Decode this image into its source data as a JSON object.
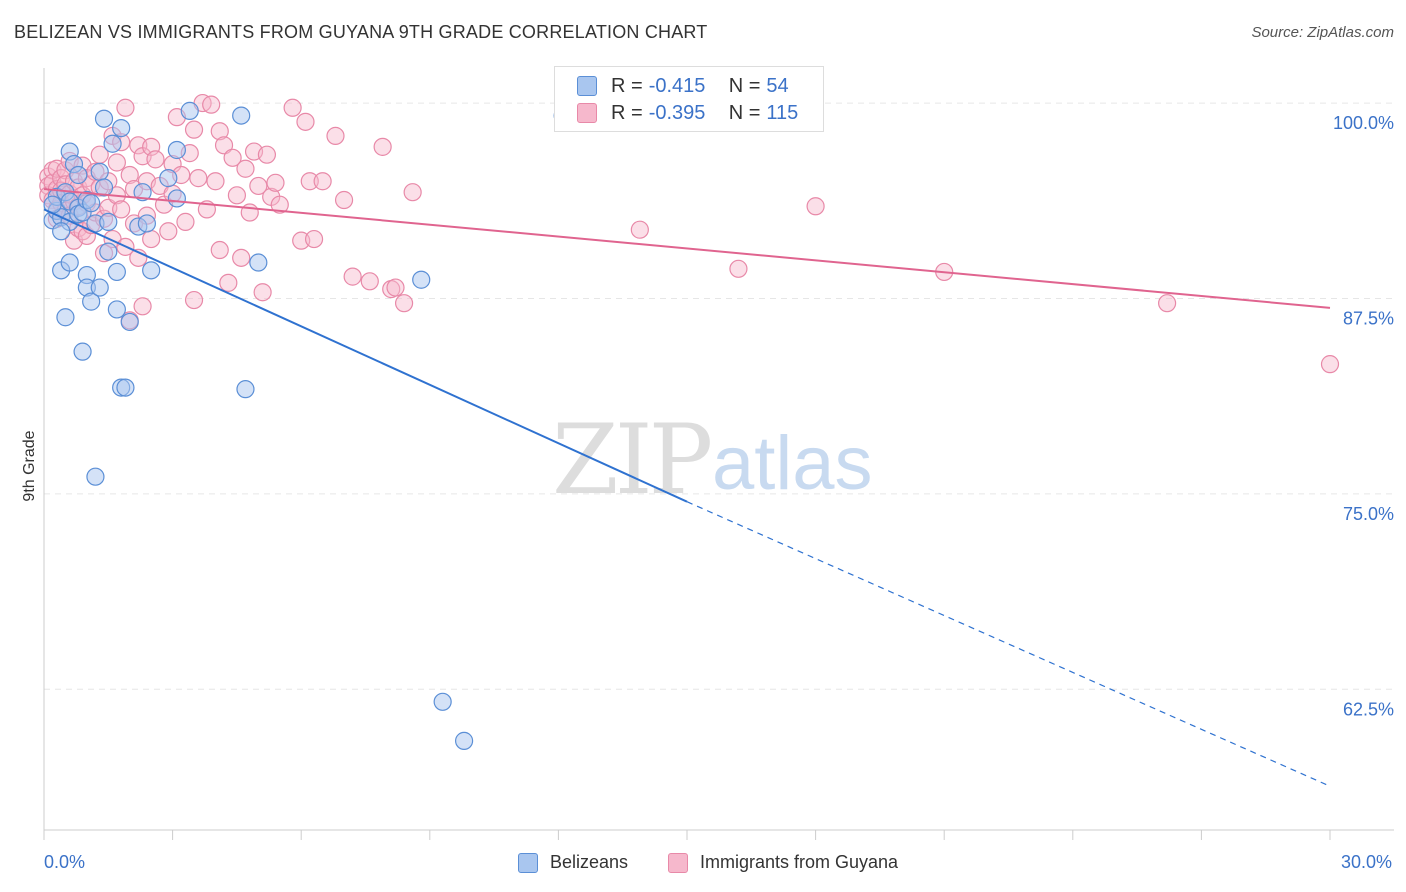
{
  "header": {
    "title": "BELIZEAN VS IMMIGRANTS FROM GUYANA 9TH GRADE CORRELATION CHART",
    "source": "Source: ZipAtlas.com"
  },
  "watermark": {
    "zip": "ZIP",
    "atlas": "atlas"
  },
  "legend": {
    "belizeans": {
      "r_label": "R =",
      "r_value": "-0.415",
      "n_label": "N =",
      "n_value": "54"
    },
    "guyana": {
      "r_label": "R =",
      "r_value": "-0.395",
      "n_label": "N =",
      "n_value": "115"
    }
  },
  "bottom_legend": {
    "belizeans": "Belizeans",
    "guyana": "Immigrants from Guyana"
  },
  "colors": {
    "blue_fill": "#a9c6ef",
    "blue_stroke": "#5b8fd6",
    "blue_line": "#2f72d0",
    "pink_fill": "#f6b8cc",
    "pink_stroke": "#e889a8",
    "pink_line": "#e0648f",
    "tick_label": "#3b72c8",
    "grid": "#e6e6e6"
  },
  "chart_data": {
    "type": "scatter",
    "title": "BELIZEAN VS IMMIGRANTS FROM GUYANA 9TH GRADE CORRELATION CHART",
    "xlabel": "",
    "ylabel": "9th Grade",
    "xlim": [
      0,
      30
    ],
    "ylim": [
      53.5,
      102.5
    ],
    "x_tick_labels": [
      "0.0%",
      "30.0%"
    ],
    "y_ticks": [
      62.5,
      75.0,
      87.5,
      100.0
    ],
    "y_tick_labels": [
      "62.5%",
      "75.0%",
      "87.5%",
      "100.0%"
    ],
    "grid": true,
    "legend_position": "top-center",
    "series": [
      {
        "name": "Belizeans",
        "r": -0.415,
        "n": 54,
        "trend": {
          "x0": 0.0,
          "y0": 93.2,
          "x1": 15.0,
          "y1": 74.5,
          "dash_x1": 30.0,
          "dash_y1": 56.3
        },
        "points": [
          [
            0.2,
            92.5
          ],
          [
            0.3,
            93.1
          ],
          [
            0.3,
            94.0
          ],
          [
            0.4,
            89.3
          ],
          [
            0.4,
            92.7
          ],
          [
            0.5,
            94.3
          ],
          [
            0.5,
            86.3
          ],
          [
            0.6,
            92.4
          ],
          [
            0.6,
            93.7
          ],
          [
            0.6,
            96.9
          ],
          [
            0.6,
            89.8
          ],
          [
            0.7,
            96.1
          ],
          [
            0.8,
            93.3
          ],
          [
            0.8,
            92.9
          ],
          [
            0.8,
            95.4
          ],
          [
            0.9,
            93.0
          ],
          [
            0.9,
            84.1
          ],
          [
            1.0,
            93.8
          ],
          [
            1.0,
            89.0
          ],
          [
            1.0,
            88.2
          ],
          [
            1.1,
            87.3
          ],
          [
            1.1,
            93.6
          ],
          [
            1.2,
            92.3
          ],
          [
            1.2,
            76.1
          ],
          [
            1.3,
            95.6
          ],
          [
            1.3,
            88.2
          ],
          [
            1.4,
            94.6
          ],
          [
            1.4,
            99.0
          ],
          [
            1.5,
            92.4
          ],
          [
            1.5,
            90.5
          ],
          [
            1.6,
            97.4
          ],
          [
            1.7,
            89.2
          ],
          [
            1.7,
            86.8
          ],
          [
            1.8,
            98.4
          ],
          [
            1.8,
            81.8
          ],
          [
            1.9,
            81.8
          ],
          [
            2.0,
            86.0
          ],
          [
            2.2,
            92.1
          ],
          [
            2.3,
            94.3
          ],
          [
            2.4,
            92.3
          ],
          [
            2.5,
            89.3
          ],
          [
            2.9,
            95.2
          ],
          [
            3.1,
            93.9
          ],
          [
            3.1,
            97.0
          ],
          [
            3.4,
            99.5
          ],
          [
            4.6,
            99.2
          ],
          [
            4.7,
            81.7
          ],
          [
            5.0,
            89.8
          ],
          [
            8.8,
            88.7
          ],
          [
            9.3,
            61.7
          ],
          [
            9.8,
            59.2
          ],
          [
            12.1,
            99.2
          ],
          [
            0.2,
            93.5
          ],
          [
            0.4,
            91.8
          ]
        ]
      },
      {
        "name": "Immigrants from Guyana",
        "r": -0.395,
        "n": 115,
        "trend": {
          "x0": 0.0,
          "y0": 94.5,
          "x1": 30.0,
          "y1": 86.9
        },
        "points": [
          [
            0.1,
            95.3
          ],
          [
            0.1,
            94.7
          ],
          [
            0.1,
            94.1
          ],
          [
            0.2,
            95.7
          ],
          [
            0.2,
            94.9
          ],
          [
            0.2,
            93.8
          ],
          [
            0.3,
            95.8
          ],
          [
            0.3,
            94.5
          ],
          [
            0.3,
            93.2
          ],
          [
            0.3,
            92.6
          ],
          [
            0.4,
            95.2
          ],
          [
            0.4,
            94.4
          ],
          [
            0.4,
            93.6
          ],
          [
            0.5,
            95.7
          ],
          [
            0.5,
            94.8
          ],
          [
            0.5,
            93.1
          ],
          [
            0.6,
            96.3
          ],
          [
            0.6,
            94.2
          ],
          [
            0.6,
            92.8
          ],
          [
            0.7,
            95.0
          ],
          [
            0.7,
            93.7
          ],
          [
            0.7,
            91.2
          ],
          [
            0.8,
            94.6
          ],
          [
            0.8,
            93.4
          ],
          [
            0.8,
            92.0
          ],
          [
            0.9,
            96.0
          ],
          [
            0.9,
            94.1
          ],
          [
            0.9,
            91.8
          ],
          [
            1.0,
            95.2
          ],
          [
            1.0,
            93.6
          ],
          [
            1.0,
            91.5
          ],
          [
            1.1,
            94.8
          ],
          [
            1.1,
            92.2
          ],
          [
            1.2,
            95.6
          ],
          [
            1.2,
            93.0
          ],
          [
            1.3,
            96.7
          ],
          [
            1.3,
            94.6
          ],
          [
            1.4,
            92.6
          ],
          [
            1.4,
            90.4
          ],
          [
            1.5,
            95.0
          ],
          [
            1.5,
            93.3
          ],
          [
            1.6,
            97.9
          ],
          [
            1.6,
            91.3
          ],
          [
            1.7,
            96.2
          ],
          [
            1.7,
            94.1
          ],
          [
            1.8,
            97.5
          ],
          [
            1.8,
            93.2
          ],
          [
            1.9,
            99.7
          ],
          [
            1.9,
            90.8
          ],
          [
            2.0,
            95.4
          ],
          [
            2.0,
            86.1
          ],
          [
            2.1,
            94.5
          ],
          [
            2.1,
            92.3
          ],
          [
            2.2,
            97.3
          ],
          [
            2.2,
            90.1
          ],
          [
            2.3,
            96.6
          ],
          [
            2.3,
            87.0
          ],
          [
            2.4,
            95.0
          ],
          [
            2.4,
            92.8
          ],
          [
            2.5,
            97.2
          ],
          [
            2.5,
            91.3
          ],
          [
            2.6,
            96.4
          ],
          [
            2.7,
            94.7
          ],
          [
            2.8,
            93.5
          ],
          [
            2.9,
            91.8
          ],
          [
            3.0,
            96.1
          ],
          [
            3.0,
            94.2
          ],
          [
            3.1,
            99.1
          ],
          [
            3.2,
            95.4
          ],
          [
            3.3,
            92.4
          ],
          [
            3.4,
            96.8
          ],
          [
            3.5,
            98.3
          ],
          [
            3.5,
            87.4
          ],
          [
            3.6,
            95.2
          ],
          [
            3.7,
            100.0
          ],
          [
            3.8,
            93.2
          ],
          [
            3.9,
            99.9
          ],
          [
            4.0,
            95.0
          ],
          [
            4.1,
            90.6
          ],
          [
            4.1,
            98.2
          ],
          [
            4.2,
            97.3
          ],
          [
            4.3,
            88.5
          ],
          [
            4.4,
            96.5
          ],
          [
            4.5,
            94.1
          ],
          [
            4.6,
            90.1
          ],
          [
            4.7,
            95.8
          ],
          [
            4.8,
            93.0
          ],
          [
            4.9,
            96.9
          ],
          [
            5.0,
            94.7
          ],
          [
            5.1,
            87.9
          ],
          [
            5.2,
            96.7
          ],
          [
            5.3,
            94.0
          ],
          [
            5.4,
            94.9
          ],
          [
            5.5,
            93.5
          ],
          [
            5.8,
            99.7
          ],
          [
            6.0,
            91.2
          ],
          [
            6.1,
            98.8
          ],
          [
            6.2,
            95.0
          ],
          [
            6.3,
            91.3
          ],
          [
            6.5,
            95.0
          ],
          [
            6.8,
            97.9
          ],
          [
            7.0,
            93.8
          ],
          [
            7.2,
            88.9
          ],
          [
            7.6,
            88.6
          ],
          [
            7.9,
            97.2
          ],
          [
            8.1,
            88.1
          ],
          [
            8.2,
            88.2
          ],
          [
            8.4,
            87.2
          ],
          [
            8.6,
            94.3
          ],
          [
            13.9,
            91.9
          ],
          [
            16.2,
            89.4
          ],
          [
            18.0,
            93.4
          ],
          [
            21.0,
            89.2
          ],
          [
            26.2,
            87.2
          ],
          [
            30.0,
            83.3
          ]
        ]
      }
    ]
  }
}
